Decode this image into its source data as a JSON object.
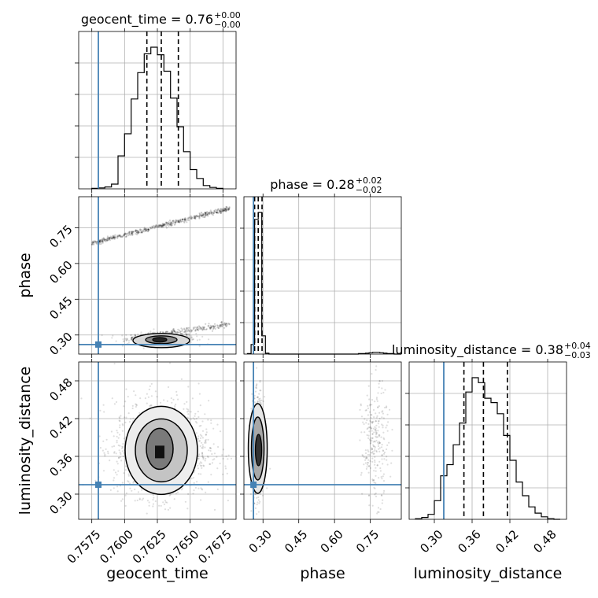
{
  "chart_data": {
    "type": "corner",
    "colors": {
      "truth": "#4682b4",
      "hist": "#000000",
      "grid": "#b0b0b0"
    },
    "grid": true,
    "parameters": [
      {
        "key": "geocent_time",
        "label": "geocent_time",
        "range": [
          0.7565,
          0.7685
        ],
        "ticks": [
          "0.7575",
          "0.7600",
          "0.7625",
          "0.7650",
          "0.7675"
        ],
        "tick_values": [
          0.7575,
          0.76,
          0.7625,
          0.765,
          0.7675
        ],
        "truth": 0.758,
        "title": {
          "name": "geocent_time",
          "value": "0.76",
          "plus": "+0.00",
          "minus": "−0.00"
        },
        "quantiles": [
          0.7617,
          0.7628,
          0.7641
        ]
      },
      {
        "key": "phase",
        "label": "phase",
        "range": [
          0.22,
          0.88
        ],
        "ticks": [
          "0.30",
          "0.45",
          "0.60",
          "0.75"
        ],
        "tick_values": [
          0.3,
          0.45,
          0.6,
          0.75
        ],
        "truth": 0.26,
        "title": {
          "name": "phase",
          "value": "0.28",
          "plus": "+0.02",
          "minus": "−0.02"
        },
        "quantiles": [
          0.265,
          0.28,
          0.296
        ]
      },
      {
        "key": "luminosity_distance",
        "label": "luminosity_distance",
        "range": [
          0.26,
          0.51
        ],
        "ticks": [
          "0.30",
          "0.36",
          "0.42",
          "0.48"
        ],
        "tick_values": [
          0.3,
          0.36,
          0.42,
          0.48
        ],
        "truth": 0.315,
        "title": {
          "name": "luminosity_distance",
          "value": "0.38",
          "plus": "+0.04",
          "minus": "−0.03"
        },
        "quantiles": [
          0.347,
          0.378,
          0.416
        ]
      }
    ],
    "histograms": {
      "geocent_time": {
        "bin_edges": [
          0.7575,
          0.758,
          0.7585,
          0.759,
          0.7595,
          0.76,
          0.7605,
          0.761,
          0.7615,
          0.762,
          0.7625,
          0.763,
          0.7635,
          0.764,
          0.7645,
          0.765,
          0.7655,
          0.766,
          0.7665,
          0.767,
          0.7675
        ],
        "counts": [
          1,
          2,
          4,
          10,
          70,
          117,
          191,
          247,
          287,
          301,
          285,
          250,
          193,
          132,
          79,
          41,
          22,
          7,
          3,
          1
        ]
      },
      "phase": {
        "bin_edges": [
          0.235,
          0.25,
          0.265,
          0.28,
          0.295,
          0.31,
          0.325,
          0.34,
          0.355,
          0.37,
          0.385,
          0.4,
          0.415,
          0.43,
          0.445,
          0.46,
          0.475,
          0.49,
          0.505,
          0.52,
          0.535,
          0.55,
          0.565,
          0.58,
          0.595,
          0.61,
          0.625,
          0.64,
          0.655,
          0.67,
          0.685,
          0.7,
          0.715,
          0.73,
          0.745,
          0.76,
          0.775,
          0.79,
          0.805,
          0.82,
          0.835,
          0.85,
          0.865,
          0.88
        ],
        "counts": [
          1,
          22,
          310,
          326,
          42,
          2,
          0,
          0,
          0,
          0,
          0,
          0,
          0,
          0,
          0,
          0,
          0,
          0,
          0,
          0,
          0,
          0,
          0,
          0,
          0,
          0,
          0,
          0,
          0,
          0,
          0,
          1,
          1,
          2,
          3,
          4,
          4,
          3,
          2,
          1,
          1,
          0,
          0
        ]
      },
      "luminosity_distance": {
        "bin_edges": [
          0.27,
          0.28,
          0.29,
          0.3,
          0.31,
          0.32,
          0.33,
          0.34,
          0.35,
          0.36,
          0.37,
          0.38,
          0.39,
          0.4,
          0.41,
          0.42,
          0.43,
          0.44,
          0.45,
          0.46,
          0.47,
          0.48,
          0.49,
          0.5
        ],
        "counts": [
          1,
          3,
          8,
          30,
          70,
          88,
          120,
          155,
          205,
          228,
          220,
          195,
          188,
          170,
          135,
          95,
          60,
          38,
          20,
          10,
          4,
          1,
          0
        ]
      }
    },
    "pairs": [
      {
        "x": "geocent_time",
        "y": "phase",
        "main_mode": {
          "x": 0.7628,
          "y": 0.29
        },
        "secondary_band": {
          "from": [
            0.7575,
            0.685
          ],
          "to": [
            0.768,
            0.83
          ]
        },
        "tail_band": {
          "from": [
            0.7605,
            0.285
          ],
          "to": [
            0.768,
            0.345
          ]
        }
      },
      {
        "x": "geocent_time",
        "y": "luminosity_distance",
        "main_mode": {
          "x": 0.7628,
          "y": 0.372
        }
      },
      {
        "x": "phase",
        "y": "luminosity_distance",
        "main_mode": {
          "x": 0.278,
          "y": 0.375
        },
        "secondary_mode": {
          "x": 0.77,
          "y": 0.38
        }
      }
    ]
  }
}
